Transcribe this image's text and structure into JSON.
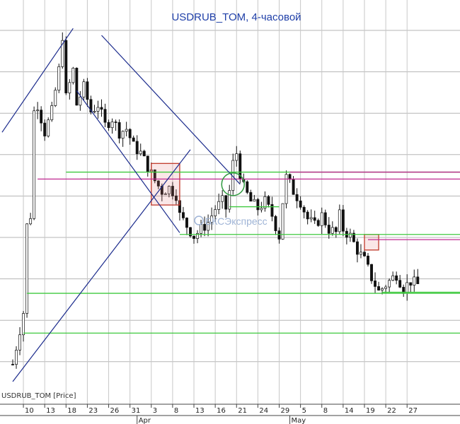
{
  "chart_data": {
    "type": "line",
    "subtype": "candlestick",
    "title": "USDRUB_TOM, 4-часовой",
    "series_label": "USDRUB_TOM [Price]",
    "watermark": "БКСЭкспресс",
    "grid": true,
    "x_ticks": [
      {
        "label": "10",
        "i": 3
      },
      {
        "label": "13",
        "i": 9
      },
      {
        "label": "18",
        "i": 15
      },
      {
        "label": "23",
        "i": 21
      },
      {
        "label": "26",
        "i": 27
      },
      {
        "label": "31",
        "i": 33
      },
      {
        "label": "3",
        "i": 39
      },
      {
        "label": "8",
        "i": 45
      },
      {
        "label": "13",
        "i": 51
      },
      {
        "label": "16",
        "i": 57
      },
      {
        "label": "21",
        "i": 63
      },
      {
        "label": "24",
        "i": 69
      },
      {
        "label": "29",
        "i": 75
      },
      {
        "label": "5",
        "i": 81
      },
      {
        "label": "8",
        "i": 87
      },
      {
        "label": "14",
        "i": 93
      },
      {
        "label": "19",
        "i": 99
      },
      {
        "label": "22",
        "i": 105
      },
      {
        "label": "27",
        "i": 111
      }
    ],
    "month_labels": [
      {
        "label": "Apr",
        "i": 35
      },
      {
        "label": "May",
        "i": 78
      }
    ],
    "close_path": [
      [
        0,
        0.05
      ],
      [
        3,
        0.2
      ],
      [
        4,
        0.45
      ],
      [
        5,
        0.48
      ],
      [
        6,
        0.78
      ],
      [
        7,
        0.8
      ],
      [
        9,
        0.72
      ],
      [
        11,
        0.78
      ],
      [
        13,
        0.9
      ],
      [
        14,
        1.0
      ],
      [
        15,
        0.82
      ],
      [
        17,
        0.9
      ],
      [
        18,
        0.8
      ],
      [
        20,
        0.85
      ],
      [
        22,
        0.78
      ],
      [
        24,
        0.8
      ],
      [
        26,
        0.74
      ],
      [
        28,
        0.76
      ],
      [
        30,
        0.72
      ],
      [
        32,
        0.73
      ],
      [
        34,
        0.68
      ],
      [
        36,
        0.66
      ],
      [
        38,
        0.62
      ],
      [
        40,
        0.58
      ],
      [
        42,
        0.55
      ],
      [
        44,
        0.56
      ],
      [
        46,
        0.54
      ],
      [
        47,
        0.48
      ],
      [
        49,
        0.45
      ],
      [
        51,
        0.42
      ],
      [
        53,
        0.44
      ],
      [
        55,
        0.46
      ],
      [
        57,
        0.5
      ],
      [
        59,
        0.52
      ],
      [
        60,
        0.5
      ],
      [
        61,
        0.55
      ],
      [
        62,
        0.63
      ],
      [
        63,
        0.66
      ],
      [
        64,
        0.6
      ],
      [
        65,
        0.56
      ],
      [
        67,
        0.52
      ],
      [
        69,
        0.5
      ],
      [
        71,
        0.52
      ],
      [
        73,
        0.48
      ],
      [
        75,
        0.42
      ],
      [
        76,
        0.52
      ],
      [
        77,
        0.59
      ],
      [
        79,
        0.55
      ],
      [
        81,
        0.52
      ],
      [
        83,
        0.47
      ],
      [
        85,
        0.45
      ],
      [
        87,
        0.48
      ],
      [
        89,
        0.44
      ],
      [
        91,
        0.43
      ],
      [
        92,
        0.48
      ],
      [
        93,
        0.44
      ],
      [
        95,
        0.42
      ],
      [
        97,
        0.38
      ],
      [
        99,
        0.35
      ],
      [
        101,
        0.3
      ],
      [
        103,
        0.26
      ],
      [
        104,
        0.27
      ],
      [
        106,
        0.29
      ],
      [
        108,
        0.31
      ],
      [
        110,
        0.27
      ],
      [
        112,
        0.29
      ],
      [
        114,
        0.28
      ]
    ],
    "annotations": {
      "green_lines": [
        {
          "y": 0.605,
          "x0": 15,
          "x1": 150
        },
        {
          "y": 0.585,
          "x0": 19,
          "x1": 32
        },
        {
          "y": 0.505,
          "x0": 61,
          "x1": 75
        },
        {
          "y": 0.425,
          "x0": 47,
          "x1": 150
        },
        {
          "y": 0.255,
          "x0": 4,
          "x1": 150
        },
        {
          "y": 0.258,
          "x0": 104,
          "x1": 150
        },
        {
          "y": 0.14,
          "x0": 3,
          "x1": 150
        }
      ],
      "magenta_lines": [
        {
          "y": 0.585,
          "x0": 7,
          "x1": 150
        },
        {
          "y": 0.605,
          "x0": 78,
          "x1": 150
        },
        {
          "y": 0.41,
          "x0": 100,
          "x1": 150
        }
      ],
      "channel_lines": [
        {
          "p1": [
            -3,
            0.72
          ],
          "p2": [
            17,
            1.02
          ]
        },
        {
          "p1": [
            25,
            1.0
          ],
          "p2": [
            64,
            0.57
          ]
        },
        {
          "p1": [
            18,
            0.84
          ],
          "p2": [
            47,
            0.43
          ]
        },
        {
          "p1": [
            0,
            0.0
          ],
          "p2": [
            50,
            0.67
          ]
        }
      ],
      "boxes": [
        {
          "i0": 39,
          "i1": 47,
          "y0": 0.51,
          "y1": 0.63
        },
        {
          "i0": 99,
          "i1": 103,
          "y0": 0.38,
          "y1": 0.425
        }
      ],
      "circle": {
        "i": 62,
        "y": 0.57
      }
    }
  }
}
